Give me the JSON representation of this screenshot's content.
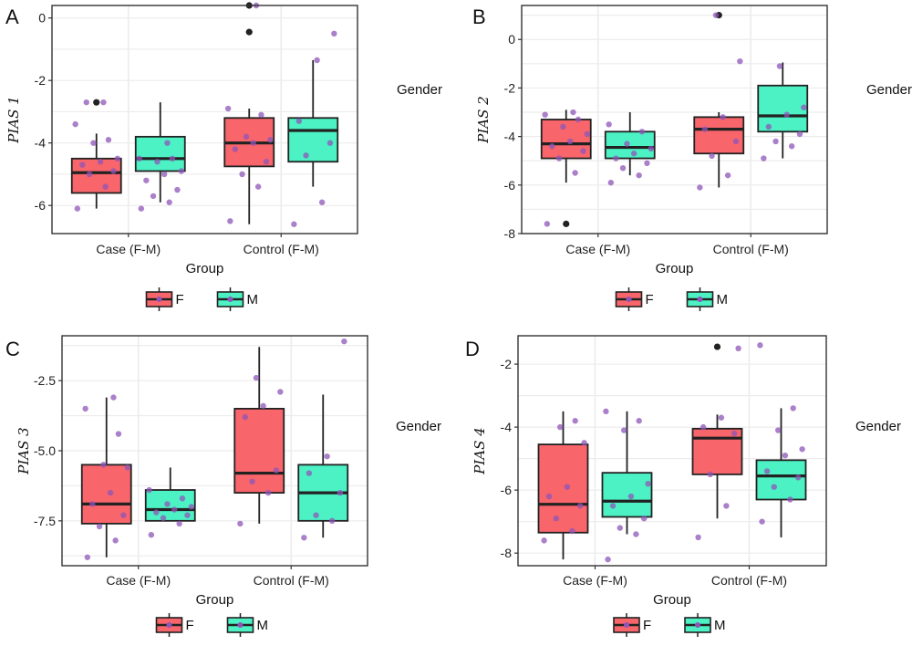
{
  "colors": {
    "F": "#f8656b",
    "M": "#4cf2c4",
    "point": "#8e55b8",
    "outlier": "#222222",
    "grid": "#ececec",
    "frame": "#333333"
  },
  "legend": {
    "title": "Gender",
    "keys": [
      {
        "label": "F",
        "color": "#f8656b"
      },
      {
        "label": "M",
        "color": "#4cf2c4"
      }
    ]
  },
  "chart_data": [
    {
      "panel_label": "A",
      "type": "box",
      "categories": [
        "Case (F-M)",
        "Control (F-M)"
      ],
      "xlabel": "Group",
      "ylabel": "PIAS 1",
      "ylim": [
        -6.9,
        0.4
      ],
      "yticks": [
        -6,
        -4,
        -2,
        0
      ],
      "yticklabels": [
        "-6",
        "-4",
        "-2",
        "0"
      ],
      "series": [
        {
          "name": "F",
          "boxes": [
            {
              "min": -6.1,
              "q1": -5.6,
              "median": -4.95,
              "q3": -4.5,
              "max": -3.7,
              "outliers": [
                -2.7
              ]
            },
            {
              "min": -6.6,
              "q1": -4.75,
              "median": -4.0,
              "q3": -3.2,
              "max": -2.9,
              "outliers": [
                0.4,
                -0.45
              ]
            }
          ]
        },
        {
          "name": "M",
          "boxes": [
            {
              "min": -5.9,
              "q1": -4.9,
              "median": -4.5,
              "q3": -3.8,
              "max": -2.7,
              "outliers": []
            },
            {
              "min": -5.4,
              "q1": -4.6,
              "median": -3.6,
              "q3": -3.2,
              "max": -1.35,
              "outliers": []
            }
          ]
        }
      ],
      "points": [
        [
          [
            -6.1,
            -5.4,
            -5.0,
            -4.9,
            -4.7,
            -4.6,
            -4.5,
            -4.0,
            -3.9,
            -3.4,
            -2.7,
            -2.7
          ],
          [
            -6.5,
            -5.4,
            -5.0,
            -4.6,
            -4.2,
            -4.0,
            -3.9,
            -3.8,
            -3.1,
            -2.9,
            0.4
          ]
        ],
        [
          [
            -6.1,
            -5.9,
            -5.7,
            -5.5,
            -5.2,
            -5.0,
            -4.9,
            -4.6,
            -4.5,
            -4.5,
            -4.0
          ],
          [
            -6.6,
            -5.9,
            -4.4,
            -4.0,
            -3.3,
            -1.35,
            -0.5
          ]
        ]
      ]
    },
    {
      "panel_label": "B",
      "type": "box",
      "categories": [
        "Case (F-M)",
        "Control (F-M)"
      ],
      "xlabel": "Group",
      "ylabel": "PIAS 2",
      "ylim": [
        -8.0,
        1.4
      ],
      "yticks": [
        -8,
        -6,
        -4,
        -2,
        0
      ],
      "yticklabels": [
        "-8",
        "-6",
        "-4",
        "-2",
        "0"
      ],
      "series": [
        {
          "name": "F",
          "boxes": [
            {
              "min": -5.9,
              "q1": -4.9,
              "median": -4.3,
              "q3": -3.3,
              "max": -2.9,
              "outliers": [
                -7.6
              ]
            },
            {
              "min": -6.1,
              "q1": -4.7,
              "median": -3.7,
              "q3": -3.2,
              "max": -3.0,
              "outliers": [
                1.0
              ]
            }
          ]
        },
        {
          "name": "M",
          "boxes": [
            {
              "min": -5.6,
              "q1": -4.9,
              "median": -4.45,
              "q3": -3.8,
              "max": -3.0,
              "outliers": []
            },
            {
              "min": -4.9,
              "q1": -3.8,
              "median": -3.15,
              "q3": -1.9,
              "max": -0.95,
              "outliers": []
            }
          ]
        }
      ],
      "points": [
        [
          [
            -7.6,
            -5.5,
            -4.9,
            -4.6,
            -4.4,
            -4.2,
            -3.9,
            -3.6,
            -3.3,
            -3.1,
            -3.0
          ],
          [
            -6.1,
            -5.6,
            -4.8,
            -4.2,
            -3.7,
            -3.2,
            -0.9,
            1.0
          ]
        ],
        [
          [
            -5.9,
            -5.6,
            -5.3,
            -5.1,
            -4.9,
            -4.7,
            -4.5,
            -4.3,
            -3.8,
            -3.5
          ],
          [
            -4.9,
            -4.4,
            -4.2,
            -3.9,
            -3.6,
            -3.1,
            -2.8,
            -1.1
          ]
        ]
      ]
    },
    {
      "panel_label": "C",
      "type": "box",
      "categories": [
        "Case (F-M)",
        "Control (F-M)"
      ],
      "xlabel": "Group",
      "ylabel": "PIAS 3",
      "ylim": [
        -9.1,
        -0.9
      ],
      "yticks": [
        -7.5,
        -5.0,
        -2.5
      ],
      "yticklabels": [
        "-7.5",
        "-5.0",
        "-2.5"
      ],
      "series": [
        {
          "name": "F",
          "boxes": [
            {
              "min": -8.8,
              "q1": -7.6,
              "median": -6.9,
              "q3": -5.5,
              "max": -3.1,
              "outliers": []
            },
            {
              "min": -7.6,
              "q1": -6.5,
              "median": -5.8,
              "q3": -3.5,
              "max": -1.3,
              "outliers": []
            }
          ]
        },
        {
          "name": "M",
          "boxes": [
            {
              "min": -7.5,
              "q1": -7.5,
              "median": -7.1,
              "q3": -6.4,
              "max": -5.6,
              "outliers": []
            },
            {
              "min": -8.1,
              "q1": -7.5,
              "median": -6.5,
              "q3": -5.5,
              "max": -3.0,
              "outliers": []
            }
          ]
        }
      ],
      "points": [
        [
          [
            -8.8,
            -8.2,
            -7.7,
            -7.3,
            -6.9,
            -6.5,
            -5.6,
            -5.5,
            -4.4,
            -3.5,
            -3.1
          ],
          [
            -7.6,
            -6.5,
            -6.1,
            -5.7,
            -3.8,
            -3.4,
            -2.9,
            -2.4
          ]
        ],
        [
          [
            -8.0,
            -7.6,
            -7.4,
            -7.3,
            -7.2,
            -7.1,
            -7.0,
            -6.9,
            -6.7,
            -6.4
          ],
          [
            -8.1,
            -7.5,
            -7.3,
            -6.5,
            -5.8,
            -5.2,
            -1.1
          ]
        ]
      ]
    },
    {
      "panel_label": "D",
      "type": "box",
      "categories": [
        "Case (F-M)",
        "Control (F-M)"
      ],
      "xlabel": "Group",
      "ylabel": "PIAS 4",
      "ylim": [
        -8.4,
        -1.1
      ],
      "yticks": [
        -8,
        -6,
        -4,
        -2
      ],
      "yticklabels": [
        "-8",
        "-6",
        "-4",
        "-2"
      ],
      "series": [
        {
          "name": "F",
          "boxes": [
            {
              "min": -8.2,
              "q1": -7.35,
              "median": -6.45,
              "q3": -4.55,
              "max": -3.5,
              "outliers": []
            },
            {
              "min": -6.9,
              "q1": -5.5,
              "median": -4.35,
              "q3": -4.05,
              "max": -3.6,
              "outliers": [
                -1.45
              ]
            }
          ]
        },
        {
          "name": "M",
          "boxes": [
            {
              "min": -7.4,
              "q1": -6.85,
              "median": -6.35,
              "q3": -5.45,
              "max": -3.5,
              "outliers": []
            },
            {
              "min": -7.5,
              "q1": -6.3,
              "median": -5.55,
              "q3": -5.05,
              "max": -3.4,
              "outliers": []
            }
          ]
        }
      ],
      "points": [
        [
          [
            -7.6,
            -7.3,
            -6.9,
            -6.5,
            -6.2,
            -5.9,
            -4.5,
            -4.0,
            -3.8
          ],
          [
            -7.5,
            -6.5,
            -5.5,
            -4.2,
            -4.0,
            -3.7,
            -1.5
          ]
        ],
        [
          [
            -8.2,
            -7.4,
            -7.2,
            -6.9,
            -6.5,
            -6.2,
            -5.8,
            -4.1,
            -3.8,
            -3.5
          ],
          [
            -7.0,
            -6.3,
            -5.9,
            -5.6,
            -5.4,
            -4.9,
            -4.7,
            -4.1,
            -3.4,
            -1.4
          ]
        ]
      ]
    }
  ]
}
